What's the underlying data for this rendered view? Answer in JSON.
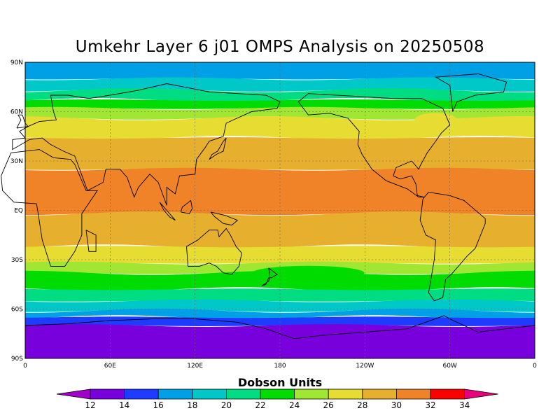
{
  "title": "Umkehr Layer 6 j01 OMPS Analysis on 20250508",
  "colorbar": {
    "title": "Dobson Units",
    "ticks": [
      "12",
      "14",
      "16",
      "18",
      "20",
      "22",
      "24",
      "26",
      "28",
      "30",
      "32",
      "34"
    ],
    "colors": [
      "#a000c8",
      "#7800dc",
      "#1e3cff",
      "#00a0e6",
      "#00c8c8",
      "#00dc82",
      "#00dc00",
      "#a0e632",
      "#e6dc32",
      "#e6af2d",
      "#f08228",
      "#fa0000",
      "#e6007a"
    ]
  },
  "axes": {
    "lat_labels": [
      "90N",
      "60N",
      "30N",
      "EQ",
      "30S",
      "60S",
      "90S"
    ],
    "lon_labels": [
      "0",
      "60E",
      "120E",
      "180",
      "120W",
      "60W",
      "0"
    ]
  },
  "chart_data": {
    "type": "heatmap",
    "title": "Umkehr Layer 6 j01 OMPS Analysis on 20250508",
    "units": "Dobson Units",
    "levels": [
      12,
      14,
      16,
      18,
      20,
      22,
      24,
      26,
      28,
      30,
      32,
      34
    ],
    "lat_range": [
      -90,
      90
    ],
    "lon_range": [
      0,
      360
    ],
    "zonal_bands": [
      {
        "lat_top": 90,
        "lat_bottom": 80,
        "value": 17
      },
      {
        "lat_top": 80,
        "lat_bottom": 73,
        "value": 19
      },
      {
        "lat_top": 73,
        "lat_bottom": 67,
        "value": 21
      },
      {
        "lat_top": 67,
        "lat_bottom": 62,
        "value": 23
      },
      {
        "lat_top": 62,
        "lat_bottom": 56,
        "value": 25
      },
      {
        "lat_top": 56,
        "lat_bottom": 44,
        "value": 27
      },
      {
        "lat_top": 44,
        "lat_bottom": 25,
        "value": 29
      },
      {
        "lat_top": 25,
        "lat_bottom": -2,
        "value": 31
      },
      {
        "lat_top": -2,
        "lat_bottom": -22,
        "value": 29
      },
      {
        "lat_top": -22,
        "lat_bottom": -32,
        "value": 27
      },
      {
        "lat_top": -32,
        "lat_bottom": -38,
        "value": 25
      },
      {
        "lat_top": -38,
        "lat_bottom": -48,
        "value": 23
      },
      {
        "lat_top": -48,
        "lat_bottom": -55,
        "value": 21
      },
      {
        "lat_top": -55,
        "lat_bottom": -61,
        "value": 19
      },
      {
        "lat_top": -61,
        "lat_bottom": -65,
        "value": 17
      },
      {
        "lat_top": -65,
        "lat_bottom": -70,
        "value": 15
      },
      {
        "lat_top": -70,
        "lat_bottom": -90,
        "value": 13
      }
    ],
    "minimum_region": {
      "lat": -78,
      "lon": 110,
      "value": 12
    },
    "maximum_region": {
      "lat": 8,
      "lon": 200,
      "value": 31
    }
  }
}
